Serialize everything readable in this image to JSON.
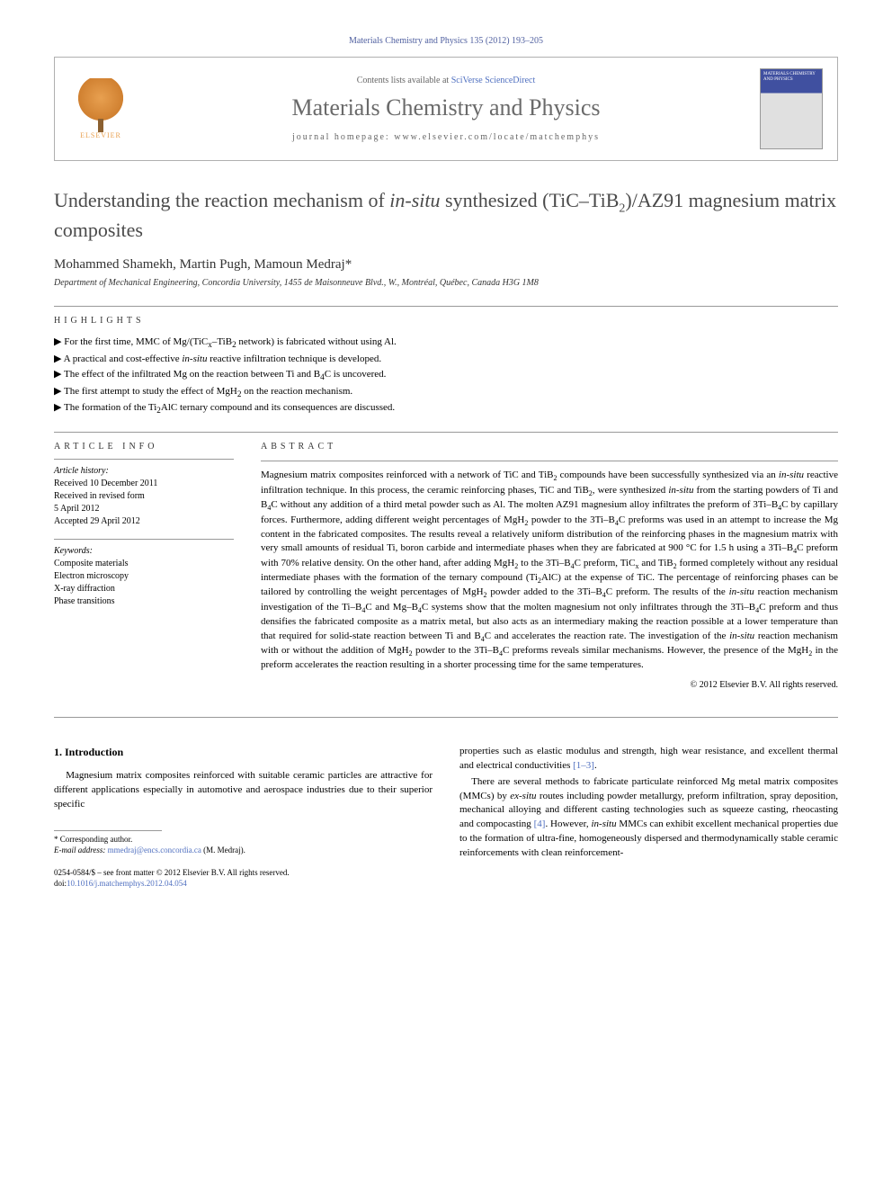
{
  "citation": "Materials Chemistry and Physics 135 (2012) 193–205",
  "header": {
    "contents_prefix": "Contents lists available at ",
    "contents_link": "SciVerse ScienceDirect",
    "journal_name": "Materials Chemistry and Physics",
    "homepage_prefix": "journal homepage: ",
    "homepage_url": "www.elsevier.com/locate/matchemphys",
    "publisher": "ELSEVIER"
  },
  "title_html": "Understanding the reaction mechanism of <span class=\"italic\">in-situ</span> synthesized (TiC–TiB<sub>2</sub>)/AZ91 magnesium matrix composites",
  "authors": "Mohammed Shamekh, Martin Pugh, Mamoun Medraj*",
  "affiliation": "Department of Mechanical Engineering, Concordia University, 1455 de Maisonneuve Blvd., W., Montréal, Québec, Canada H3G 1M8",
  "highlights_label": "HIGHLIGHTS",
  "highlights": [
    "For the first time, MMC of Mg/(TiC<sub>x</sub>–TiB<sub>2</sub> network) is fabricated without using Al.",
    "A practical and cost-effective <i>in-situ</i> reactive infiltration technique is developed.",
    "The effect of the infiltrated Mg on the reaction between Ti and B<sub>4</sub>C is uncovered.",
    "The first attempt to study the effect of MgH<sub>2</sub> on the reaction mechanism.",
    "The formation of the Ti<sub>2</sub>AlC ternary compound and its consequences are discussed."
  ],
  "article_info": {
    "label": "ARTICLE INFO",
    "history_heading": "Article history:",
    "history": [
      "Received 10 December 2011",
      "Received in revised form",
      "5 April 2012",
      "Accepted 29 April 2012"
    ],
    "keywords_heading": "Keywords:",
    "keywords": [
      "Composite materials",
      "Electron microscopy",
      "X-ray diffraction",
      "Phase transitions"
    ]
  },
  "abstract": {
    "label": "ABSTRACT",
    "text_html": "Magnesium matrix composites reinforced with a network of TiC and TiB<sub>2</sub> compounds have been successfully synthesized via an <i>in-situ</i> reactive infiltration technique. In this process, the ceramic reinforcing phases, TiC and TiB<sub>2</sub>, were synthesized <i>in-situ</i> from the starting powders of Ti and B<sub>4</sub>C without any addition of a third metal powder such as Al. The molten AZ91 magnesium alloy infiltrates the preform of 3Ti–B<sub>4</sub>C by capillary forces. Furthermore, adding different weight percentages of MgH<sub>2</sub> powder to the 3Ti–B<sub>4</sub>C preforms was used in an attempt to increase the Mg content in the fabricated composites. The results reveal a relatively uniform distribution of the reinforcing phases in the magnesium matrix with very small amounts of residual Ti, boron carbide and intermediate phases when they are fabricated at 900 °C for 1.5 h using a 3Ti–B<sub>4</sub>C preform with 70% relative density. On the other hand, after adding MgH<sub>2</sub> to the 3Ti–B<sub>4</sub>C preform, TiC<sub>x</sub> and TiB<sub>2</sub> formed completely without any residual intermediate phases with the formation of the ternary compound (Ti<sub>2</sub>AlC) at the expense of TiC. The percentage of reinforcing phases can be tailored by controlling the weight percentages of MgH<sub>2</sub> powder added to the 3Ti–B<sub>4</sub>C preform. The results of the <i>in-situ</i> reaction mechanism investigation of the Ti–B<sub>4</sub>C and Mg–B<sub>4</sub>C systems show that the molten magnesium not only infiltrates through the 3Ti–B<sub>4</sub>C preform and thus densifies the fabricated composite as a matrix metal, but also acts as an intermediary making the reaction possible at a lower temperature than that required for solid-state reaction between Ti and B<sub>4</sub>C and accelerates the reaction rate. The investigation of the <i>in-situ</i> reaction mechanism with or without the addition of MgH<sub>2</sub> powder to the 3Ti–B<sub>4</sub>C preforms reveals similar mechanisms. However, the presence of the MgH<sub>2</sub> in the preform accelerates the reaction resulting in a shorter processing time for the same temperatures.",
    "copyright": "© 2012 Elsevier B.V. All rights reserved."
  },
  "body": {
    "section_number": "1.",
    "section_title": "Introduction",
    "col1_p1": "Magnesium matrix composites reinforced with suitable ceramic particles are attractive for different applications especially in automotive and aerospace industries due to their superior specific",
    "col2_p1_html": "properties such as elastic modulus and strength, high wear resistance, and excellent thermal and electrical conductivities <a href=\"#\">[1–3]</a>.",
    "col2_p2_html": "There are several methods to fabricate particulate reinforced Mg metal matrix composites (MMCs) by <i>ex-situ</i> routes including powder metallurgy, preform infiltration, spray deposition, mechanical alloying and different casting technologies such as squeeze casting, rheocasting and compocasting <a href=\"#\">[4]</a>. However, <i>in-situ</i> MMCs can exhibit excellent mechanical properties due to the formation of ultra-fine, homogeneously dispersed and thermodynamically stable ceramic reinforcements with clean reinforcement-"
  },
  "footnote": {
    "corresponding": "* Corresponding author.",
    "email_label": "E-mail address:",
    "email": "mmedraj@encs.concordia.ca",
    "email_name": "(M. Medraj)."
  },
  "footer": {
    "line1": "0254-0584/$ – see front matter © 2012 Elsevier B.V. All rights reserved.",
    "doi_prefix": "doi:",
    "doi": "10.1016/j.matchemphys.2012.04.054"
  }
}
